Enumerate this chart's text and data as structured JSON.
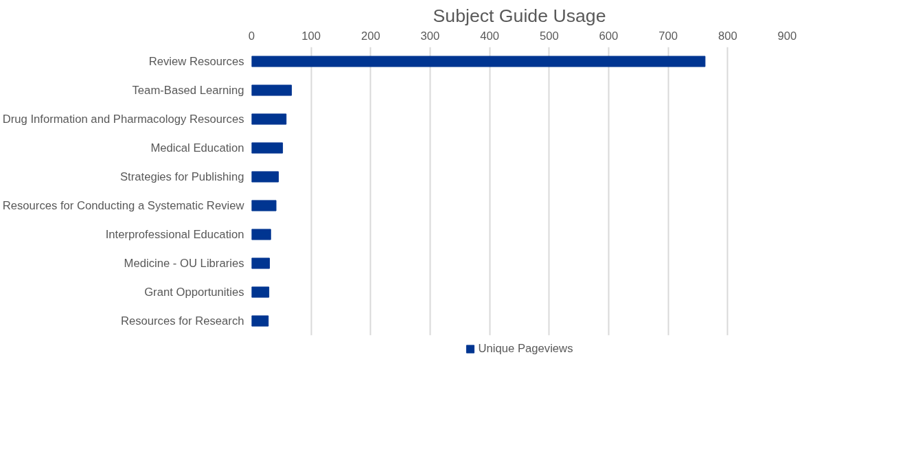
{
  "chart_data": {
    "type": "bar",
    "orientation": "horizontal",
    "title": "Subject Guide Usage",
    "categories": [
      "Review Resources",
      "Team-Based Learning",
      "Drug Information and Pharmacology Resources",
      "Medical Education",
      "Strategies for Publishing",
      "Resources for Conducting a Systematic Review",
      "Interprofessional Education",
      "Medicine - OU Libraries",
      "Grant Opportunities",
      "Resources for Research"
    ],
    "series": [
      {
        "name": "Unique Pageviews",
        "color": "#003591",
        "values": [
          762,
          67,
          58,
          52,
          45,
          41,
          32,
          30,
          29,
          28
        ]
      }
    ],
    "xlim": [
      0,
      900
    ],
    "xticks": [
      0,
      100,
      200,
      300,
      400,
      500,
      600,
      700,
      800,
      900
    ],
    "grid": "x",
    "legend": "bottom"
  }
}
